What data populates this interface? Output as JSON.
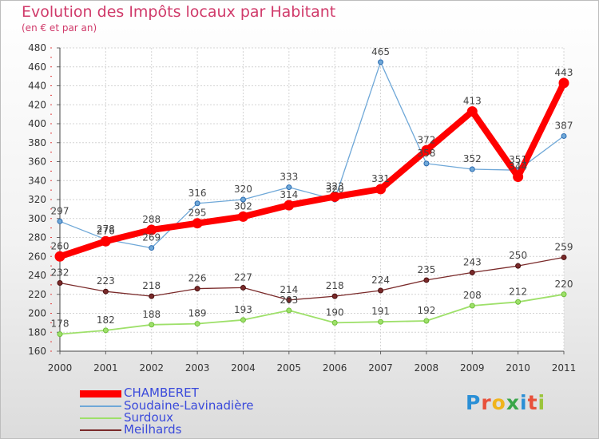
{
  "title": "Evolution des Impôts locaux par Habitant",
  "subtitle": "(en € et par an)",
  "logo": {
    "text": "Proxiti",
    "letters": [
      {
        "ch": "P",
        "color": "#2a8fd6"
      },
      {
        "ch": "r",
        "color": "#e8503a"
      },
      {
        "ch": "o",
        "color": "#f0b41c"
      },
      {
        "ch": "x",
        "color": "#3aa64a"
      },
      {
        "ch": "i",
        "color": "#2a8fd6"
      },
      {
        "ch": "t",
        "color": "#e8503a"
      },
      {
        "ch": "i",
        "color": "#9bc43b"
      }
    ]
  },
  "chart_data": {
    "type": "line",
    "title": "Evolution des Impôts locaux par Habitant",
    "subtitle": "(en € et par an)",
    "x": [
      "2000",
      "2001",
      "2002",
      "2003",
      "2004",
      "2005",
      "2006",
      "2007",
      "2008",
      "2009",
      "2010",
      "2011"
    ],
    "ylim": [
      160,
      480
    ],
    "yticks": [
      160,
      180,
      200,
      220,
      240,
      260,
      280,
      300,
      320,
      340,
      360,
      380,
      400,
      420,
      440,
      460,
      480
    ],
    "grid": true,
    "legend_position": "bottom-left",
    "series": [
      {
        "name": "CHAMBERET",
        "color": "#ff0000",
        "values": [
          260,
          276,
          288,
          295,
          302,
          314,
          323,
          331,
          372,
          413,
          344,
          443
        ],
        "labels": [
          "260",
          "276",
          "288",
          "295",
          "302",
          "314",
          "323",
          "331",
          "372",
          "413",
          "344",
          "443"
        ]
      },
      {
        "name": "Soudaine-Lavinadière",
        "color": "#6fa8d8",
        "values": [
          297,
          278,
          269,
          316,
          320,
          333,
          320,
          465,
          358,
          352,
          351,
          387
        ],
        "labels": [
          "297",
          "278",
          "269",
          "316",
          "320",
          "333",
          "320",
          "465",
          "358",
          "352",
          "351",
          "387"
        ]
      },
      {
        "name": "Surdoux",
        "color": "#9ee06a",
        "values": [
          178,
          182,
          188,
          189,
          193,
          203,
          190,
          191,
          192,
          208,
          212,
          220
        ],
        "labels": [
          "178",
          "182",
          "188",
          "189",
          "193",
          "203",
          "190",
          "191",
          "192",
          "208",
          "212",
          "220"
        ]
      },
      {
        "name": "Meilhards",
        "color": "#7a2a2a",
        "values": [
          232,
          223,
          218,
          226,
          227,
          214,
          218,
          224,
          235,
          243,
          250,
          259
        ],
        "labels": [
          "232",
          "223",
          "218",
          "226",
          "227",
          "214",
          "218",
          "224",
          "235",
          "243",
          "250",
          "259"
        ]
      }
    ]
  }
}
